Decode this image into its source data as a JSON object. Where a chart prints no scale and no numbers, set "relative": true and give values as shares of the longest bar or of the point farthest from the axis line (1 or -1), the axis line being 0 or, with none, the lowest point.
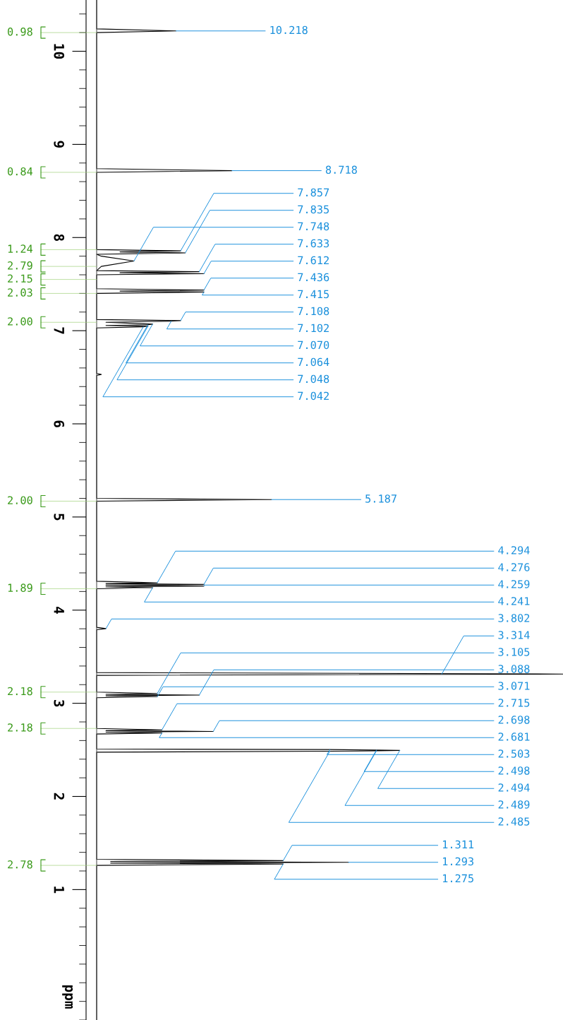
{
  "chart_data": {
    "type": "line",
    "orientation": "horizontal",
    "relative": true,
    "ylabel": "ppm",
    "ylim": [
      -0.4,
      10.55
    ],
    "yticks": [
      1,
      2,
      3,
      4,
      5,
      6,
      7,
      8,
      9,
      10
    ],
    "grid": false,
    "legend": false,
    "marker": "none",
    "line_style": "solid",
    "series": [
      {
        "color": "#000000",
        "x": [
          10.55,
          10.24,
          10.218,
          10.2,
          8.74,
          8.718,
          8.7,
          7.87,
          7.857,
          7.846,
          7.835,
          7.82,
          7.8,
          7.748,
          7.69,
          7.645,
          7.633,
          7.622,
          7.612,
          7.6,
          7.45,
          7.436,
          7.425,
          7.415,
          7.4,
          7.12,
          7.108,
          7.102,
          7.09,
          7.07,
          7.064,
          7.056,
          7.048,
          7.042,
          7.03,
          6.54,
          6.53,
          6.52,
          5.2,
          5.187,
          5.17,
          4.31,
          4.294,
          4.285,
          4.276,
          4.268,
          4.259,
          4.25,
          4.241,
          4.23,
          3.815,
          3.802,
          3.79,
          3.33,
          3.314,
          3.3,
          3.12,
          3.105,
          3.096,
          3.088,
          3.08,
          3.071,
          3.06,
          2.73,
          2.715,
          2.706,
          2.698,
          2.69,
          2.681,
          2.67,
          2.51,
          2.503,
          2.498,
          2.494,
          2.489,
          2.485,
          2.475,
          1.325,
          1.311,
          1.302,
          1.293,
          1.284,
          1.275,
          1.26,
          -0.4
        ],
        "values": [
          0,
          0,
          0.17,
          0,
          0,
          0.29,
          0,
          0,
          0.18,
          0.05,
          0.19,
          0,
          0.01,
          0.08,
          0.01,
          0,
          0.22,
          0.05,
          0.23,
          0,
          0,
          0.23,
          0.05,
          0.23,
          0,
          0,
          0.18,
          0.16,
          0.02,
          0.12,
          0.11,
          0.02,
          0.11,
          0.1,
          0,
          0,
          0.01,
          0,
          0,
          0.375,
          0,
          0,
          0.13,
          0.02,
          0.23,
          0.02,
          0.23,
          0.02,
          0.12,
          0,
          0,
          0.02,
          0,
          0,
          1,
          0,
          0,
          0.13,
          0.02,
          0.22,
          0.02,
          0.13,
          0,
          0,
          0.14,
          0.02,
          0.25,
          0.02,
          0.14,
          0,
          0,
          0.5,
          0.6,
          0.65,
          0.6,
          0.5,
          0,
          0,
          0.4,
          0.03,
          0.54,
          0.03,
          0.4,
          0,
          0
        ]
      }
    ],
    "annotations": [
      {
        "text": "10.218",
        "x": 0.17,
        "y": 10.218
      },
      {
        "text": "8.718",
        "x": 0.29,
        "y": 8.718
      },
      {
        "text": "7.857",
        "x": 0.18,
        "y": 7.857
      },
      {
        "text": "7.835",
        "x": 0.19,
        "y": 7.835
      },
      {
        "text": "7.748",
        "x": 0.08,
        "y": 7.748
      },
      {
        "text": "7.633",
        "x": 0.22,
        "y": 7.633
      },
      {
        "text": "7.612",
        "x": 0.23,
        "y": 7.612
      },
      {
        "text": "7.436",
        "x": 0.23,
        "y": 7.436
      },
      {
        "text": "7.415",
        "x": 0.23,
        "y": 7.415
      },
      {
        "text": "7.108",
        "x": 0.18,
        "y": 7.108
      },
      {
        "text": "7.102",
        "x": 0.16,
        "y": 7.102
      },
      {
        "text": "7.070",
        "x": 0.12,
        "y": 7.07
      },
      {
        "text": "7.064",
        "x": 0.11,
        "y": 7.064
      },
      {
        "text": "7.048",
        "x": 0.11,
        "y": 7.048
      },
      {
        "text": "7.042",
        "x": 0.1,
        "y": 7.042
      },
      {
        "text": "5.187",
        "x": 0.375,
        "y": 5.187
      },
      {
        "text": "4.294",
        "x": 0.13,
        "y": 4.294
      },
      {
        "text": "4.276",
        "x": 0.23,
        "y": 4.276
      },
      {
        "text": "4.259",
        "x": 0.23,
        "y": 4.259
      },
      {
        "text": "4.241",
        "x": 0.12,
        "y": 4.241
      },
      {
        "text": "3.802",
        "x": 0.02,
        "y": 3.802
      },
      {
        "text": "3.314",
        "x": 0.74,
        "y": 3.314
      },
      {
        "text": "3.105",
        "x": 0.13,
        "y": 3.105
      },
      {
        "text": "3.088",
        "x": 0.22,
        "y": 3.088
      },
      {
        "text": "3.071",
        "x": 0.13,
        "y": 3.071
      },
      {
        "text": "2.715",
        "x": 0.14,
        "y": 2.715
      },
      {
        "text": "2.698",
        "x": 0.25,
        "y": 2.698
      },
      {
        "text": "2.681",
        "x": 0.14,
        "y": 2.681
      },
      {
        "text": "2.503",
        "x": 0.5,
        "y": 2.503
      },
      {
        "text": "2.498",
        "x": 0.6,
        "y": 2.498
      },
      {
        "text": "2.494",
        "x": 0.65,
        "y": 2.494
      },
      {
        "text": "2.489",
        "x": 0.6,
        "y": 2.489
      },
      {
        "text": "2.485",
        "x": 0.5,
        "y": 2.485
      },
      {
        "text": "1.311",
        "x": 0.4,
        "y": 1.311
      },
      {
        "text": "1.293",
        "x": 0.54,
        "y": 1.293
      },
      {
        "text": "1.275",
        "x": 0.4,
        "y": 1.275
      },
      {
        "text": "0.98",
        "x": 0,
        "y": 10.2
      },
      {
        "text": "0.84",
        "x": 0,
        "y": 8.7
      },
      {
        "text": "1.24",
        "x": 0,
        "y": 7.87
      },
      {
        "text": "2.79",
        "x": 0,
        "y": 7.69
      },
      {
        "text": "2.15",
        "x": 0,
        "y": 7.55
      },
      {
        "text": "2.03",
        "x": 0,
        "y": 7.4
      },
      {
        "text": "2.00",
        "x": 0,
        "y": 7.09
      },
      {
        "text": "2.00",
        "x": 0,
        "y": 5.17
      },
      {
        "text": "1.89",
        "x": 0,
        "y": 4.23
      },
      {
        "text": "2.18",
        "x": 0,
        "y": 3.12
      },
      {
        "text": "2.18",
        "x": 0,
        "y": 2.73
      },
      {
        "text": "2.78",
        "x": 0,
        "y": 1.26
      }
    ]
  }
}
